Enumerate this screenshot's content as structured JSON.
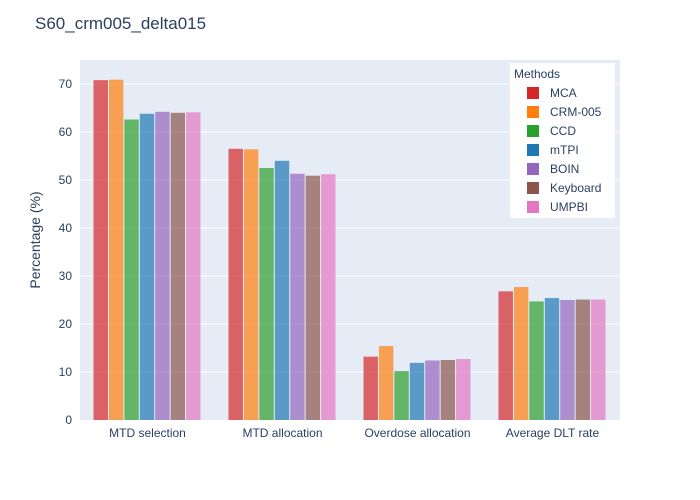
{
  "chart_data": {
    "type": "bar",
    "title": "S60_crm005_delta015",
    "xlabel": "",
    "ylabel": "Percentage (%)",
    "ylim": [
      0,
      75
    ],
    "yticks": [
      0,
      10,
      20,
      30,
      40,
      50,
      60,
      70
    ],
    "grid": true,
    "legend_title": "Methods",
    "legend_position": "top-right",
    "categories": [
      "MTD selection",
      "MTD allocation",
      "Overdose allocation",
      "Average DLT rate"
    ],
    "series": [
      {
        "name": "MCA",
        "color": "#d62728",
        "values": [
          70.8,
          56.5,
          13.2,
          26.8
        ]
      },
      {
        "name": "CRM-005",
        "color": "#ff7f0e",
        "values": [
          70.9,
          56.4,
          15.4,
          27.7
        ]
      },
      {
        "name": "CCD",
        "color": "#2ca02c",
        "values": [
          62.6,
          52.5,
          10.2,
          24.7
        ]
      },
      {
        "name": "mTPI",
        "color": "#1f77b4",
        "values": [
          63.8,
          54.0,
          11.9,
          25.4
        ]
      },
      {
        "name": "BOIN",
        "color": "#9467bd",
        "values": [
          64.2,
          51.3,
          12.4,
          25.0
        ]
      },
      {
        "name": "Keyboard",
        "color": "#8c564b",
        "values": [
          64.0,
          50.9,
          12.5,
          25.1
        ]
      },
      {
        "name": "UMPBI",
        "color": "#e377c2",
        "values": [
          64.1,
          51.2,
          12.7,
          25.1
        ]
      }
    ]
  }
}
